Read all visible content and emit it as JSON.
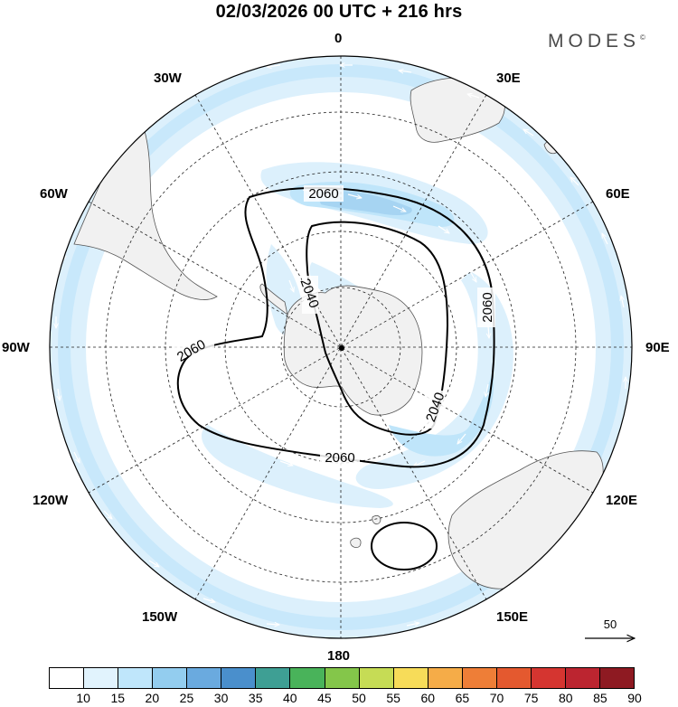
{
  "title": "02/03/2026  00 UTC  + 216 hrs",
  "brand": "MODES",
  "brand_mark": "©",
  "longitude_labels": [
    "0",
    "30E",
    "60E",
    "90E",
    "120E",
    "150E",
    "180",
    "150W",
    "120W",
    "90W",
    "60W",
    "30W"
  ],
  "contours": [
    {
      "label": "2060",
      "kind": "outer"
    },
    {
      "label": "2060",
      "kind": "outer"
    },
    {
      "label": "2060",
      "kind": "outer"
    },
    {
      "label": "2060",
      "kind": "outer"
    },
    {
      "label": "2040",
      "kind": "inner"
    },
    {
      "label": "2040",
      "kind": "inner"
    }
  ],
  "vector_reference": {
    "label": "50"
  },
  "colorbar": {
    "ticks": [
      "10",
      "15",
      "20",
      "25",
      "30",
      "35",
      "40",
      "45",
      "50",
      "55",
      "60",
      "65",
      "70",
      "75",
      "80",
      "85",
      "90"
    ],
    "colors": [
      "#ffffff",
      "#e1f3fd",
      "#bfe6fb",
      "#93cdef",
      "#6aaadf",
      "#4a8fcc",
      "#3e9f94",
      "#49b35a",
      "#84c64a",
      "#c6dc55",
      "#f7dc59",
      "#f5ac48",
      "#ee7e37",
      "#e4592f",
      "#d53530",
      "#bc2530",
      "#8e1a22"
    ]
  },
  "colors": {
    "land": "#f1f1f1",
    "coast": "#555555",
    "jet_light": "#dcf0fc",
    "jet_mid": "#bfe5fa",
    "jet_strong": "#a6d4f2"
  }
}
